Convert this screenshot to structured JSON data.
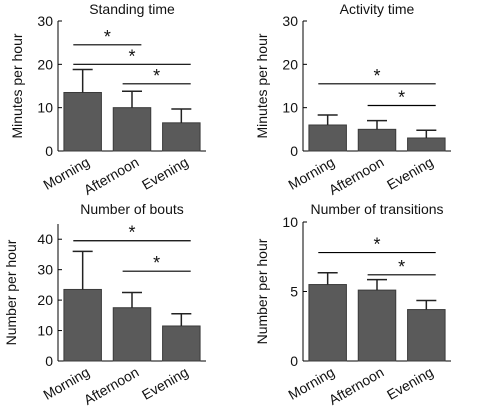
{
  "chart_data": [
    {
      "type": "bar",
      "title": "Standing time",
      "ylabel": "Minutes per hour",
      "xlabel": "",
      "categories": [
        "Morning",
        "Afternoon",
        "Evening"
      ],
      "values": [
        13.5,
        10.0,
        6.5
      ],
      "errors": [
        5.3,
        3.8,
        3.2
      ],
      "ylim": [
        0,
        30
      ],
      "yticks": [
        0,
        10,
        20,
        30
      ],
      "significance": [
        {
          "from": 0,
          "to": 1,
          "y": 24.5,
          "symbol": "*"
        },
        {
          "from": 0,
          "to": 2,
          "y": 20.0,
          "symbol": "*"
        },
        {
          "from": 1,
          "to": 2,
          "y": 15.5,
          "symbol": "*"
        }
      ],
      "grid": false,
      "bar_color": "#5a5a5a"
    },
    {
      "type": "bar",
      "title": "Activity time",
      "ylabel": "Minutes per hour",
      "xlabel": "",
      "categories": [
        "Morning",
        "Afternoon",
        "Evening"
      ],
      "values": [
        6.0,
        5.0,
        3.0
      ],
      "errors": [
        2.3,
        2.0,
        1.8
      ],
      "ylim": [
        0,
        30
      ],
      "yticks": [
        0,
        10,
        20,
        30
      ],
      "significance": [
        {
          "from": 0,
          "to": 2,
          "y": 15.5,
          "symbol": "*"
        },
        {
          "from": 1,
          "to": 2,
          "y": 10.5,
          "symbol": "*"
        }
      ],
      "grid": false,
      "bar_color": "#5a5a5a"
    },
    {
      "type": "bar",
      "title": "Number of bouts",
      "ylabel": "Number per hour",
      "xlabel": "",
      "categories": [
        "Morning",
        "Afternoon",
        "Evening"
      ],
      "values": [
        23.5,
        17.5,
        11.5
      ],
      "errors": [
        12.5,
        5.0,
        4.0
      ],
      "ylim": [
        0,
        45
      ],
      "yticks": [
        0,
        10,
        20,
        30,
        40
      ],
      "significance": [
        {
          "from": 0,
          "to": 2,
          "y": 39.5,
          "symbol": "*"
        },
        {
          "from": 1,
          "to": 2,
          "y": 29.5,
          "symbol": "*"
        }
      ],
      "grid": false,
      "bar_color": "#5a5a5a"
    },
    {
      "type": "bar",
      "title": "Number of transitions",
      "ylabel": "Number per hour",
      "xlabel": "",
      "categories": [
        "Morning",
        "Afternoon",
        "Evening"
      ],
      "values": [
        5.5,
        5.1,
        3.7
      ],
      "errors": [
        0.85,
        0.75,
        0.65
      ],
      "ylim": [
        0,
        10
      ],
      "yticks": [
        0,
        5,
        10
      ],
      "significance": [
        {
          "from": 0,
          "to": 2,
          "y": 7.8,
          "symbol": "*"
        },
        {
          "from": 1,
          "to": 2,
          "y": 6.2,
          "symbol": "*"
        }
      ],
      "grid": false,
      "bar_color": "#5a5a5a"
    }
  ]
}
